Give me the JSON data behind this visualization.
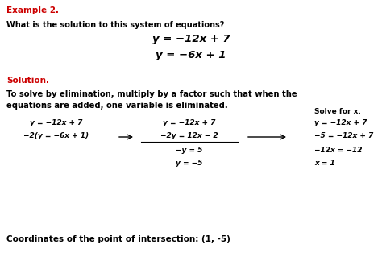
{
  "bg_color": "#ffffff",
  "text_color": "#000000",
  "red_color": "#cc0000",
  "title": "Example 2.",
  "question": "What is the solution to this system of equations?",
  "eq1": "y = −12x + 7",
  "eq2": "y = −6x + 1",
  "solution_label": "Solution.",
  "explanation_line1": "To solve by elimination, multiply by a factor such that when the",
  "explanation_line2": "equations are added, one variable is eliminated.",
  "col1_line1": "y = −12x + 7",
  "col1_line2": "−2(y = −6x + 1)",
  "arrow1_label": "→",
  "col2_line1": "y = −12x + 7",
  "col2_line2": "−2y = 12x − 2",
  "col2_line3": "−y = 5",
  "col2_line4": "y = −5",
  "col3_header": "Solve for x.",
  "col3_line1": "y = −12x + 7",
  "col3_line2": "−5 = −12x + 7",
  "col3_line3": "−12x = −12",
  "col3_line4": "x = 1",
  "conclusion": "Coordinates of the point of intersection: (1, -5)",
  "title_fs": 7.5,
  "question_fs": 7.0,
  "eq_fs": 9.5,
  "sol_label_fs": 7.5,
  "explanation_fs": 7.2,
  "work_fs": 6.5,
  "concl_fs": 7.5
}
